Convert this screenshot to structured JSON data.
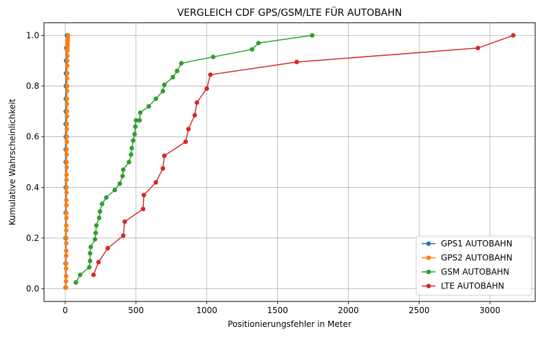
{
  "chart_data": {
    "type": "line",
    "title": "VERGLEICH CDF GPS/GSM/LTE FÜR AUTOBAHN",
    "xlabel": "Positionierungsfehler in Meter",
    "ylabel": "Kumulative Wahrscheinlichkeit",
    "xlim": [
      -150,
      3320
    ],
    "ylim": [
      -0.05,
      1.05
    ],
    "xticks": [
      0,
      500,
      1000,
      1500,
      2000,
      2500,
      3000
    ],
    "yticks": [
      0.0,
      0.2,
      0.4,
      0.6,
      0.8,
      1.0
    ],
    "grid": true,
    "legend_position": "bottom-right",
    "series": [
      {
        "name": "GPS1 AUTOBAHN",
        "color": "#1f77b4",
        "x": [
          2,
          2,
          2,
          3,
          3,
          3,
          3,
          3,
          3,
          4,
          4,
          4,
          5,
          6,
          8,
          12
        ],
        "y": [
          0.005,
          0.1,
          0.2,
          0.3,
          0.4,
          0.5,
          0.55,
          0.6,
          0.65,
          0.7,
          0.75,
          0.8,
          0.85,
          0.9,
          0.95,
          1.0
        ]
      },
      {
        "name": "GPS2 AUTOBAHN",
        "color": "#ff7f0e",
        "x": [
          5,
          5,
          6,
          6,
          6,
          6,
          7,
          7,
          7,
          7,
          7,
          8,
          8,
          8,
          8,
          9,
          9,
          9,
          9,
          10,
          10,
          10,
          10,
          11,
          11,
          11,
          11,
          12,
          12,
          12,
          12,
          13,
          13,
          13,
          14,
          14,
          14,
          15,
          15,
          15,
          16,
          16,
          17,
          18,
          20
        ],
        "y": [
          0.005,
          0.03,
          0.05,
          0.08,
          0.1,
          0.13,
          0.15,
          0.18,
          0.2,
          0.23,
          0.25,
          0.28,
          0.3,
          0.33,
          0.35,
          0.38,
          0.4,
          0.43,
          0.45,
          0.48,
          0.5,
          0.53,
          0.55,
          0.58,
          0.6,
          0.63,
          0.65,
          0.68,
          0.7,
          0.73,
          0.75,
          0.78,
          0.8,
          0.83,
          0.85,
          0.88,
          0.9,
          0.92,
          0.94,
          0.95,
          0.96,
          0.97,
          0.98,
          0.99,
          1.0
        ]
      },
      {
        "name": "GSM AUTOBAHN",
        "color": "#2ca02c",
        "x": [
          75,
          105,
          170,
          175,
          175,
          180,
          210,
          215,
          220,
          240,
          245,
          260,
          290,
          350,
          385,
          405,
          410,
          450,
          465,
          470,
          480,
          490,
          495,
          500,
          525,
          530,
          590,
          640,
          690,
          700,
          760,
          790,
          820,
          1045,
          1320,
          1365,
          1745
        ],
        "y": [
          0.025,
          0.055,
          0.085,
          0.11,
          0.14,
          0.165,
          0.195,
          0.22,
          0.25,
          0.28,
          0.305,
          0.335,
          0.36,
          0.39,
          0.415,
          0.445,
          0.47,
          0.5,
          0.53,
          0.555,
          0.585,
          0.61,
          0.64,
          0.665,
          0.665,
          0.695,
          0.72,
          0.75,
          0.78,
          0.805,
          0.835,
          0.86,
          0.89,
          0.915,
          0.945,
          0.97,
          1.0
        ]
      },
      {
        "name": "LTE AUTOBAHN",
        "color": "#d62728",
        "x": [
          200,
          235,
          300,
          410,
          420,
          550,
          555,
          640,
          690,
          700,
          850,
          870,
          915,
          930,
          1000,
          1025,
          1635,
          2915,
          3165
        ],
        "y": [
          0.055,
          0.105,
          0.16,
          0.21,
          0.265,
          0.315,
          0.37,
          0.42,
          0.475,
          0.525,
          0.58,
          0.63,
          0.685,
          0.735,
          0.79,
          0.845,
          0.895,
          0.95,
          1.0
        ]
      }
    ]
  }
}
